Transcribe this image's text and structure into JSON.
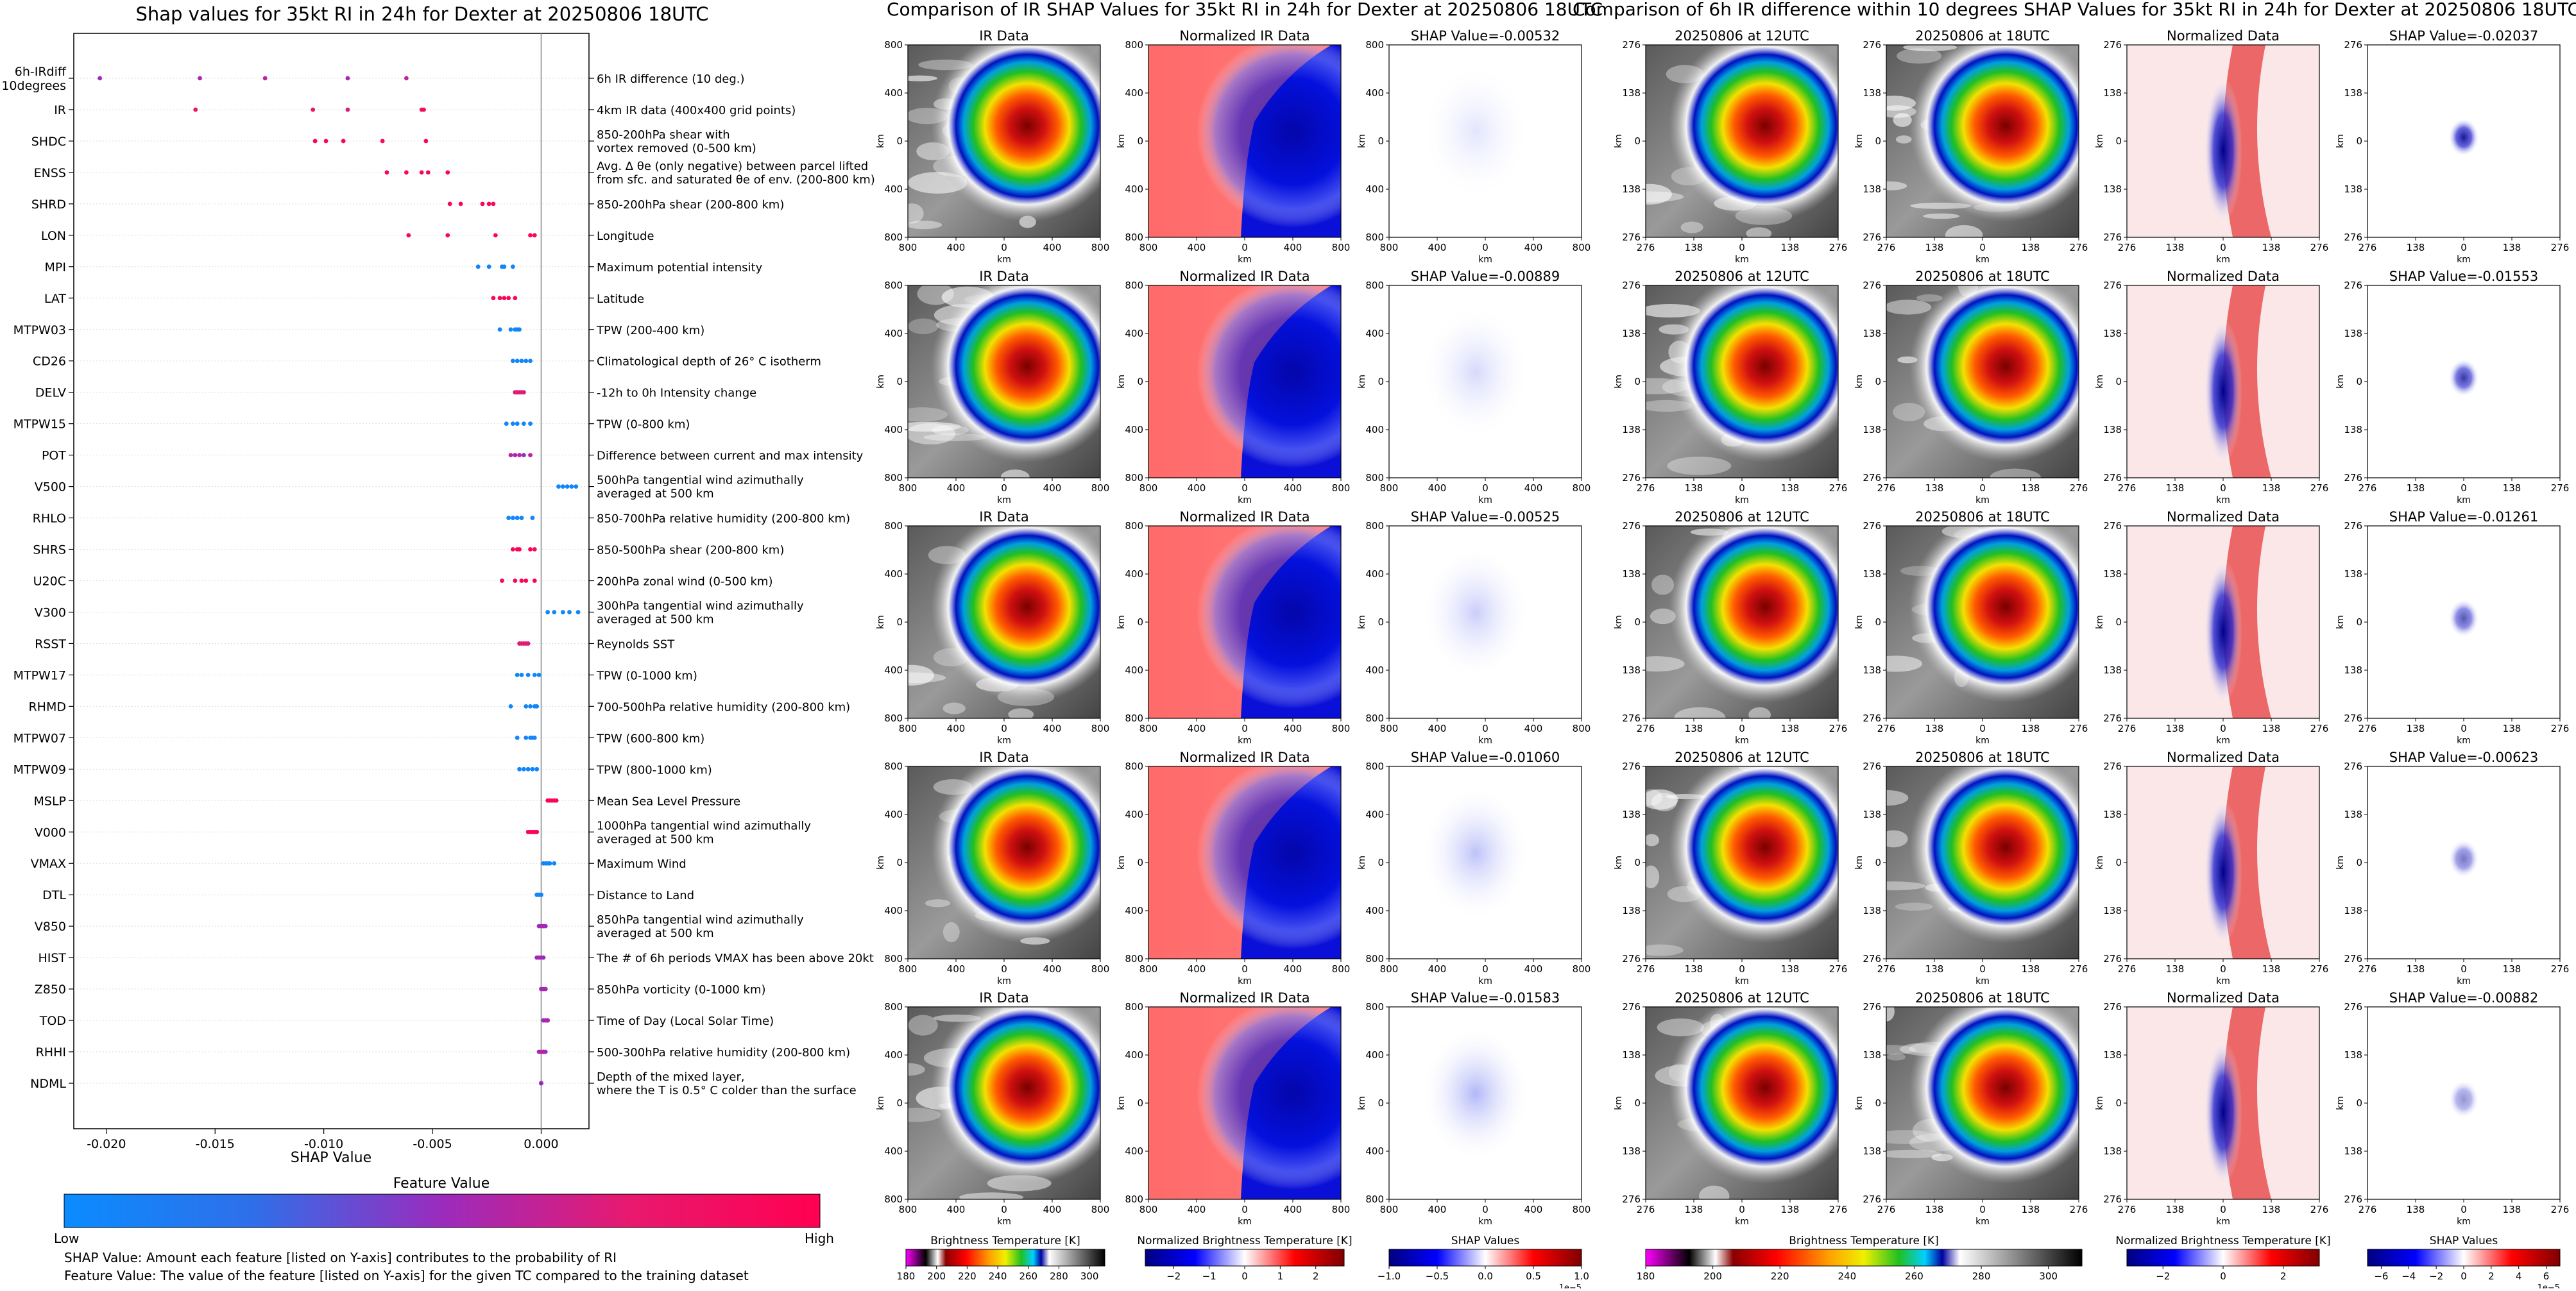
{
  "chart_data": [
    {
      "type": "scatter",
      "title": "Shap values for 35kt RI in 24h for Dexter at 20250806 18UTC",
      "xlabel": "SHAP Value",
      "ylabel": "",
      "xlim": [
        -0.0215,
        0.0022
      ],
      "x_ticks": [
        "-0.020",
        "-0.015",
        "-0.010",
        "-0.005",
        "0.000"
      ],
      "x_tick_values": [
        -0.02,
        -0.015,
        -0.01,
        -0.005,
        0.0
      ],
      "grid": false,
      "features": [
        {
          "code": "6h-IRdiff\n10degrees",
          "desc": "6h IR difference (10 deg.)",
          "shap": [
            -0.0203,
            -0.0157,
            -0.0127,
            -0.0089,
            -0.0062
          ],
          "feature_value": [
            0.5,
            0.55,
            0.6,
            0.55,
            0.6
          ]
        },
        {
          "code": "IR",
          "desc": "4km IR data (400x400 grid points)",
          "shap": [
            -0.0159,
            -0.0105,
            -0.0089,
            -0.0055,
            -0.0054
          ],
          "feature_value": [
            0.8,
            0.8,
            0.7,
            0.8,
            0.9
          ]
        },
        {
          "code": "SHDC",
          "desc": "850-200hPa shear with\nvortex removed (0-500 km)",
          "shap": [
            -0.0104,
            -0.0099,
            -0.0091,
            -0.0073,
            -0.0053
          ],
          "feature_value": [
            0.95,
            0.9,
            0.95,
            0.9,
            0.95
          ]
        },
        {
          "code": "ENSS",
          "desc": "Avg. Δ θe (only negative) between parcel lifted\nfrom sfc. and saturated θe of env. (200-800 km)",
          "shap": [
            -0.0071,
            -0.0062,
            -0.0055,
            -0.0052,
            -0.0043
          ],
          "feature_value": [
            0.95,
            0.95,
            0.95,
            0.95,
            0.95
          ]
        },
        {
          "code": "SHRD",
          "desc": "850-200hPa shear (200-800 km)",
          "shap": [
            -0.0042,
            -0.0037,
            -0.0027,
            -0.0024,
            -0.0022
          ],
          "feature_value": [
            0.95,
            0.95,
            0.95,
            0.95,
            0.95
          ]
        },
        {
          "code": "LON",
          "desc": "Longitude",
          "shap": [
            -0.0061,
            -0.0043,
            -0.0021,
            -0.0005,
            -0.0003
          ],
          "feature_value": [
            0.95,
            0.95,
            0.95,
            0.95,
            0.95
          ]
        },
        {
          "code": "MPI",
          "desc": "Maximum potential intensity",
          "shap": [
            -0.0029,
            -0.0024,
            -0.0018,
            -0.0017,
            -0.0013
          ],
          "feature_value": [
            0.05,
            0.05,
            0.05,
            0.05,
            0.05
          ]
        },
        {
          "code": "LAT",
          "desc": "Latitude",
          "shap": [
            -0.0022,
            -0.0019,
            -0.0017,
            -0.0015,
            -0.0012
          ],
          "feature_value": [
            0.95,
            0.95,
            0.95,
            0.95,
            0.95
          ]
        },
        {
          "code": "MTPW03",
          "desc": "TPW (200-400 km)",
          "shap": [
            -0.0019,
            -0.0014,
            -0.0012,
            -0.0011,
            -0.001
          ],
          "feature_value": [
            0.05,
            0.05,
            0.05,
            0.05,
            0.05
          ]
        },
        {
          "code": "CD26",
          "desc": "Climatological depth of 26° C isotherm",
          "shap": [
            -0.0013,
            -0.0011,
            -0.0009,
            -0.0007,
            -0.0005
          ],
          "feature_value": [
            0.05,
            0.05,
            0.05,
            0.05,
            0.05
          ]
        },
        {
          "code": "DELV",
          "desc": "-12h to 0h Intensity change",
          "shap": [
            -0.0012,
            -0.0011,
            -0.001,
            -0.0009,
            -0.0008
          ],
          "feature_value": [
            0.7,
            0.75,
            0.7,
            0.75,
            0.7
          ]
        },
        {
          "code": "MTPW15",
          "desc": "TPW (0-800 km)",
          "shap": [
            -0.0016,
            -0.0013,
            -0.0011,
            -0.0008,
            -0.0005
          ],
          "feature_value": [
            0.05,
            0.05,
            0.05,
            0.05,
            0.05
          ]
        },
        {
          "code": "POT",
          "desc": "Difference between current and max intensity",
          "shap": [
            -0.0014,
            -0.0012,
            -0.001,
            -0.0008,
            -0.0005
          ],
          "feature_value": [
            0.6,
            0.55,
            0.6,
            0.5,
            0.6
          ]
        },
        {
          "code": "V500",
          "desc": "500hPa tangential wind azimuthally\naveraged at 500 km",
          "shap": [
            0.0008,
            0.001,
            0.0012,
            0.0014,
            0.0016
          ],
          "feature_value": [
            0.05,
            0.05,
            0.05,
            0.05,
            0.05
          ]
        },
        {
          "code": "RHLO",
          "desc": "850-700hPa relative humidity (200-800 km)",
          "shap": [
            -0.0015,
            -0.0013,
            -0.0011,
            -0.0009,
            -0.0004
          ],
          "feature_value": [
            0.05,
            0.05,
            0.05,
            0.05,
            0.05
          ]
        },
        {
          "code": "SHRS",
          "desc": "850-500hPa shear (200-800 km)",
          "shap": [
            -0.0013,
            -0.0011,
            -0.001,
            -0.0005,
            -0.0003
          ],
          "feature_value": [
            0.95,
            0.95,
            0.95,
            0.95,
            0.95
          ]
        },
        {
          "code": "U20C",
          "desc": "200hPa zonal wind (0-500 km)",
          "shap": [
            -0.0018,
            -0.0012,
            -0.0009,
            -0.0007,
            -0.0003
          ],
          "feature_value": [
            0.95,
            0.95,
            0.95,
            0.95,
            0.95
          ]
        },
        {
          "code": "V300",
          "desc": "300hPa tangential wind azimuthally\naveraged at 500 km",
          "shap": [
            0.0003,
            0.0006,
            0.001,
            0.0013,
            0.0017
          ],
          "feature_value": [
            0.05,
            0.05,
            0.05,
            0.05,
            0.05
          ]
        },
        {
          "code": "RSST",
          "desc": "Reynolds SST",
          "shap": [
            -0.001,
            -0.0009,
            -0.0008,
            -0.0007,
            -0.0006
          ],
          "feature_value": [
            0.7,
            0.75,
            0.7,
            0.75,
            0.7
          ]
        },
        {
          "code": "MTPW17",
          "desc": "TPW (0-1000 km)",
          "shap": [
            -0.0011,
            -0.0009,
            -0.0006,
            -0.0003,
            -0.0001
          ],
          "feature_value": [
            0.05,
            0.05,
            0.05,
            0.05,
            0.05
          ]
        },
        {
          "code": "RHMD",
          "desc": "700-500hPa relative humidity (200-800 km)",
          "shap": [
            -0.0014,
            -0.0007,
            -0.0005,
            -0.0003,
            -0.0002
          ],
          "feature_value": [
            0.05,
            0.05,
            0.05,
            0.05,
            0.05
          ]
        },
        {
          "code": "MTPW07",
          "desc": "TPW (600-800 km)",
          "shap": [
            -0.0011,
            -0.0007,
            -0.0005,
            -0.0004,
            -0.0003
          ],
          "feature_value": [
            0.05,
            0.05,
            0.05,
            0.05,
            0.05
          ]
        },
        {
          "code": "MTPW09",
          "desc": "TPW (800-1000 km)",
          "shap": [
            -0.001,
            -0.0008,
            -0.0006,
            -0.0004,
            -0.0002
          ],
          "feature_value": [
            0.05,
            0.05,
            0.05,
            0.05,
            0.05
          ]
        },
        {
          "code": "MSLP",
          "desc": "Mean Sea Level Pressure",
          "shap": [
            0.0003,
            0.0004,
            0.0005,
            0.0006,
            0.0007
          ],
          "feature_value": [
            0.95,
            0.95,
            0.95,
            0.95,
            0.95
          ]
        },
        {
          "code": "V000",
          "desc": "1000hPa tangential wind azimuthally\naveraged at 500 km",
          "shap": [
            -0.0006,
            -0.0005,
            -0.0004,
            -0.0003,
            -0.0002
          ],
          "feature_value": [
            0.95,
            0.95,
            0.95,
            0.95,
            0.95
          ]
        },
        {
          "code": "VMAX",
          "desc": "Maximum Wind",
          "shap": [
            0.0001,
            0.0002,
            0.0003,
            0.0004,
            0.0006
          ],
          "feature_value": [
            0.05,
            0.05,
            0.05,
            0.05,
            0.05
          ]
        },
        {
          "code": "DTL",
          "desc": "Distance to Land",
          "shap": [
            -0.0002,
            -0.0001,
            -0.0001,
            0.0,
            0.0
          ],
          "feature_value": [
            0.05,
            0.05,
            0.05,
            0.05,
            0.05
          ]
        },
        {
          "code": "V850",
          "desc": "850hPa tangential wind azimuthally\naveraged at 500 km",
          "shap": [
            -0.0001,
            0.0,
            0.0001,
            0.0001,
            0.0002
          ],
          "feature_value": [
            0.5,
            0.55,
            0.5,
            0.55,
            0.5
          ]
        },
        {
          "code": "HIST",
          "desc": "The # of 6h periods VMAX has been above 20kt",
          "shap": [
            -0.0002,
            -0.0001,
            0.0,
            0.0001,
            0.0001
          ],
          "feature_value": [
            0.5,
            0.55,
            0.5,
            0.55,
            0.5
          ]
        },
        {
          "code": "Z850",
          "desc": "850hPa vorticity (0-1000 km)",
          "shap": [
            0.0,
            0.0001,
            0.0001,
            0.0002,
            0.0002
          ],
          "feature_value": [
            0.5,
            0.5,
            0.55,
            0.5,
            0.55
          ]
        },
        {
          "code": "TOD",
          "desc": "Time of Day (Local Solar Time)",
          "shap": [
            0.0001,
            0.0002,
            0.0002,
            0.0003,
            0.0003
          ],
          "feature_value": [
            0.5,
            0.5,
            0.55,
            0.5,
            0.55
          ]
        },
        {
          "code": "RHHI",
          "desc": "500-300hPa relative humidity (200-800 km)",
          "shap": [
            -0.0001,
            0.0,
            0.0001,
            0.0001,
            0.0002
          ],
          "feature_value": [
            0.5,
            0.6,
            0.5,
            0.6,
            0.5
          ]
        },
        {
          "code": "NDML",
          "desc": "Depth of the mixed layer,\nwhere the T is 0.5° C colder than the surface",
          "shap": [
            0.0,
            0.0,
            0.0,
            0.0,
            0.0
          ],
          "feature_value": [
            0.5,
            0.5,
            0.5,
            0.5,
            0.5
          ]
        }
      ],
      "colorbar": {
        "label": "Feature Value",
        "low": "Low",
        "high": "High",
        "colors": [
          "#0a8cff",
          "#2f6fe9",
          "#9b2bbd",
          "#e8196e",
          "#ff0052"
        ]
      },
      "notes": [
        "SHAP Value: Amount each feature [listed on Y-axis] contributes to the probability of RI",
        "Feature Value: The value of the feature [listed on Y-axis] for the given TC compared to the training dataset"
      ]
    },
    {
      "type": "heatmap",
      "title": "Comparison of IR SHAP Values for 35kt RI in 24h for Dexter at 20250806 18UTC",
      "panel_titles": [
        "IR Data",
        "Normalized IR Data"
      ],
      "xlabel": "km",
      "ylabel": "km",
      "x_ticks": [
        "800",
        "400",
        "0",
        "400",
        "800"
      ],
      "y_ticks": [
        "800",
        "400",
        "0",
        "400",
        "800"
      ],
      "shap_titles": [
        "SHAP Value=-0.00532",
        "SHAP Value=-0.00889",
        "SHAP Value=-0.00525",
        "SHAP Value=-0.01060",
        "SHAP Value=-0.01583"
      ],
      "colorbars": [
        {
          "label": "Brightness Temperature [K]",
          "ticks": [
            "180",
            "200",
            "220",
            "240",
            "260",
            "280",
            "300"
          ],
          "range": [
            180,
            310
          ]
        },
        {
          "label": "Normalized Brightness Temperature [K]",
          "ticks": [
            "−2",
            "−1",
            "0",
            "1",
            "2"
          ],
          "range": [
            -2.8,
            2.8
          ]
        },
        {
          "label": "SHAP Values",
          "ticks": [
            "−1.0",
            "−0.5",
            "0.0",
            "0.5",
            "1.0"
          ],
          "range": [
            -1.0,
            1.0
          ],
          "exponent": "1e−5"
        }
      ]
    },
    {
      "type": "heatmap",
      "title": "Comparison of 6h IR difference within 10 degrees SHAP Values for 35kt RI in 24h for Dexter at 20250806 18UTC",
      "panel_titles": [
        "20250806 at 12UTC",
        "20250806 at 18UTC",
        "Normalized Data"
      ],
      "xlabel": "km",
      "ylabel": "km",
      "x_ticks": [
        "276",
        "138",
        "0",
        "138",
        "276"
      ],
      "y_ticks": [
        "276",
        "138",
        "0",
        "138",
        "276"
      ],
      "shap_titles": [
        "SHAP Value=-0.02037",
        "SHAP Value=-0.01553",
        "SHAP Value=-0.01261",
        "SHAP Value=-0.00623",
        "SHAP Value=-0.00882"
      ],
      "colorbars": [
        {
          "label": "Brightness Temperature [K]",
          "ticks": [
            "180",
            "200",
            "220",
            "240",
            "260",
            "280",
            "300"
          ],
          "range": [
            180,
            310
          ]
        },
        {
          "label": "Normalized Brightness Temperature [K]",
          "ticks": [
            "−2",
            "0",
            "2"
          ],
          "range": [
            -3.2,
            3.2
          ]
        },
        {
          "label": "SHAP Values",
          "ticks": [
            "−6",
            "−4",
            "−2",
            "0",
            "2",
            "4",
            "6"
          ],
          "range": [
            -7,
            7
          ],
          "exponent": "1e−5"
        }
      ]
    }
  ]
}
